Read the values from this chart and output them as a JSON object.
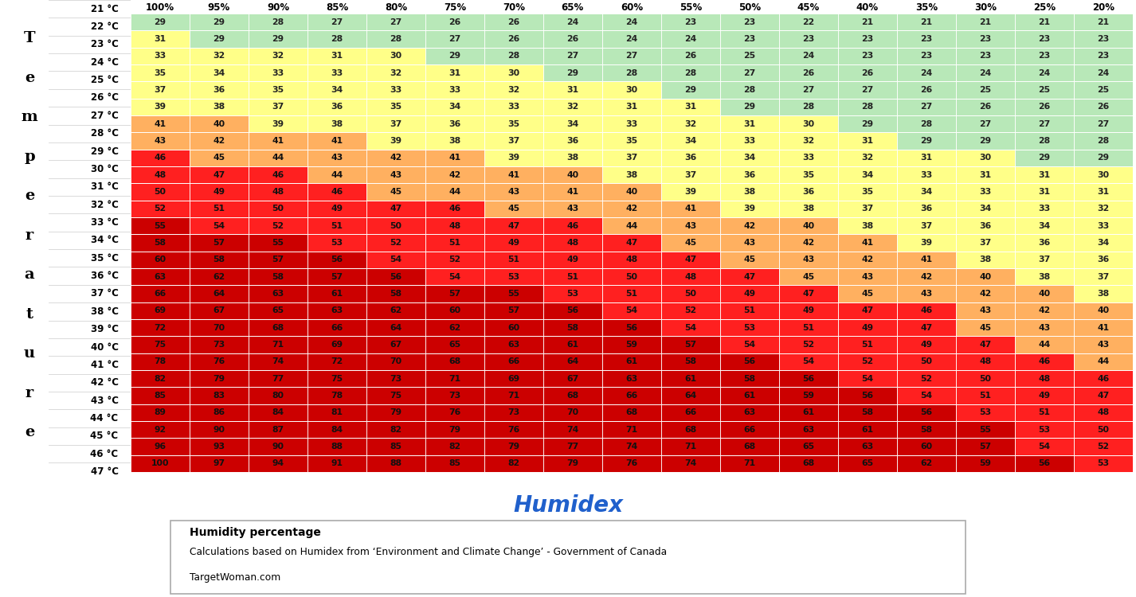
{
  "humidity_cols": [
    "100%",
    "95%",
    "90%",
    "85%",
    "80%",
    "75%",
    "70%",
    "65%",
    "60%",
    "55%",
    "50%",
    "45%",
    "40%",
    "35%",
    "30%",
    "25%",
    "20%"
  ],
  "temp_rows": [
    "21 °C",
    "22 °C",
    "23 °C",
    "24 °C",
    "25 °C",
    "26 °C",
    "27 °C",
    "28 °C",
    "29 °C",
    "30 °C",
    "31 °C",
    "32 °C",
    "33 °C",
    "34 °C",
    "35 °C",
    "36 °C",
    "37 °C",
    "38 °C",
    "39 °C",
    "40 °C",
    "41 °C",
    "42 °C",
    "43 °C",
    "44 °C",
    "45 °C",
    "46 °C",
    "47 °C"
  ],
  "data": [
    [
      29,
      29,
      28,
      27,
      27,
      26,
      26,
      24,
      24,
      23,
      23,
      22,
      21,
      21,
      21,
      21,
      21
    ],
    [
      31,
      29,
      29,
      28,
      28,
      27,
      26,
      26,
      24,
      24,
      23,
      23,
      23,
      23,
      23,
      23,
      23
    ],
    [
      33,
      32,
      32,
      31,
      30,
      29,
      28,
      27,
      27,
      26,
      25,
      24,
      23,
      23,
      23,
      23,
      23
    ],
    [
      35,
      34,
      33,
      33,
      32,
      31,
      30,
      29,
      28,
      28,
      27,
      26,
      26,
      24,
      24,
      24,
      24
    ],
    [
      37,
      36,
      35,
      34,
      33,
      33,
      32,
      31,
      30,
      29,
      28,
      27,
      27,
      26,
      25,
      25,
      25
    ],
    [
      39,
      38,
      37,
      36,
      35,
      34,
      33,
      32,
      31,
      31,
      29,
      28,
      28,
      27,
      26,
      26,
      26
    ],
    [
      41,
      40,
      39,
      38,
      37,
      36,
      35,
      34,
      33,
      32,
      31,
      30,
      29,
      28,
      27,
      27,
      27
    ],
    [
      43,
      42,
      41,
      41,
      39,
      38,
      37,
      36,
      35,
      34,
      33,
      32,
      31,
      29,
      29,
      28,
      28
    ],
    [
      46,
      45,
      44,
      43,
      42,
      41,
      39,
      38,
      37,
      36,
      34,
      33,
      32,
      31,
      30,
      29,
      29
    ],
    [
      48,
      47,
      46,
      44,
      43,
      42,
      41,
      40,
      38,
      37,
      36,
      35,
      34,
      33,
      31,
      31,
      30
    ],
    [
      50,
      49,
      48,
      46,
      45,
      44,
      43,
      41,
      40,
      39,
      38,
      36,
      35,
      34,
      33,
      31,
      31
    ],
    [
      52,
      51,
      50,
      49,
      47,
      46,
      45,
      43,
      42,
      41,
      39,
      38,
      37,
      36,
      34,
      33,
      32
    ],
    [
      55,
      54,
      52,
      51,
      50,
      48,
      47,
      46,
      44,
      43,
      42,
      40,
      38,
      37,
      36,
      34,
      33
    ],
    [
      58,
      57,
      55,
      53,
      52,
      51,
      49,
      48,
      47,
      45,
      43,
      42,
      41,
      39,
      37,
      36,
      34
    ],
    [
      60,
      58,
      57,
      56,
      54,
      52,
      51,
      49,
      48,
      47,
      45,
      43,
      42,
      41,
      38,
      37,
      36
    ],
    [
      63,
      62,
      58,
      57,
      56,
      54,
      53,
      51,
      50,
      48,
      47,
      45,
      43,
      42,
      40,
      38,
      37
    ],
    [
      66,
      64,
      63,
      61,
      58,
      57,
      55,
      53,
      51,
      50,
      49,
      47,
      45,
      43,
      42,
      40,
      38
    ],
    [
      69,
      67,
      65,
      63,
      62,
      60,
      57,
      56,
      54,
      52,
      51,
      49,
      47,
      46,
      43,
      42,
      40
    ],
    [
      72,
      70,
      68,
      66,
      64,
      62,
      60,
      58,
      56,
      54,
      53,
      51,
      49,
      47,
      45,
      43,
      41
    ],
    [
      75,
      73,
      71,
      69,
      67,
      65,
      63,
      61,
      59,
      57,
      54,
      52,
      51,
      49,
      47,
      44,
      43
    ],
    [
      78,
      76,
      74,
      72,
      70,
      68,
      66,
      64,
      61,
      58,
      56,
      54,
      52,
      50,
      48,
      46,
      44
    ],
    [
      82,
      79,
      77,
      75,
      73,
      71,
      69,
      67,
      63,
      61,
      58,
      56,
      54,
      52,
      50,
      48,
      46
    ],
    [
      85,
      83,
      80,
      78,
      75,
      73,
      71,
      68,
      66,
      64,
      61,
      59,
      56,
      54,
      51,
      49,
      47
    ],
    [
      89,
      86,
      84,
      81,
      79,
      76,
      73,
      70,
      68,
      66,
      63,
      61,
      58,
      56,
      53,
      51,
      48
    ],
    [
      92,
      90,
      87,
      84,
      82,
      79,
      76,
      74,
      71,
      68,
      66,
      63,
      61,
      58,
      55,
      53,
      50
    ],
    [
      96,
      93,
      90,
      88,
      85,
      82,
      79,
      77,
      74,
      71,
      68,
      65,
      63,
      60,
      57,
      54,
      52
    ],
    [
      100,
      97,
      94,
      91,
      88,
      85,
      82,
      79,
      76,
      74,
      71,
      68,
      65,
      62,
      59,
      56,
      53
    ]
  ],
  "footer_line1": "Humidity percentage",
  "footer_line2": "Calculations based on Humidex from ‘Environment and Climate Change’ - Government of Canada",
  "footer_line3": "TargetWoman.com",
  "humidex_title": "Humidex",
  "color_thresholds": [
    {
      "max": 29,
      "color": "#b8e8b8"
    },
    {
      "max": 39,
      "color": "#ffff88"
    },
    {
      "max": 45,
      "color": "#ffb060"
    },
    {
      "max": 54,
      "color": "#ff2020"
    },
    {
      "max": 999,
      "color": "#cc0000"
    }
  ],
  "vert_label": "Temperature",
  "cell_text_color_dark": "#111111",
  "cell_text_color_red": "#880000"
}
